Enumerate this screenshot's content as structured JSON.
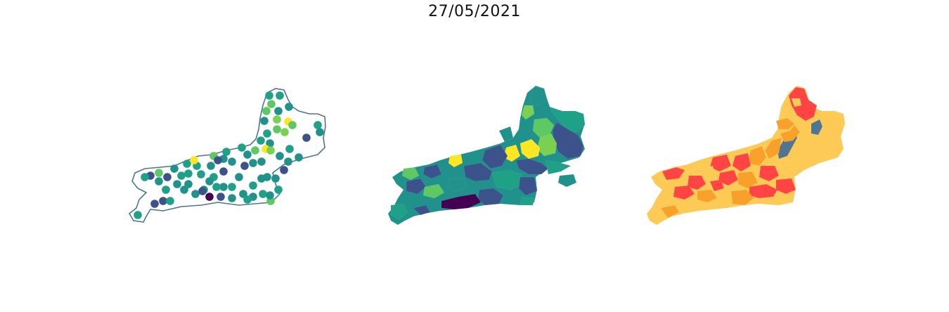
{
  "title": "27/05/2021",
  "colors": {
    "viridis": [
      "#440154",
      "#3b528b",
      "#21918c",
      "#1fa187",
      "#5ec962",
      "#7ad151",
      "#fde725"
    ],
    "risk": [
      "#ff4444",
      "#fdca55",
      "#f7a12a",
      "#4f7591"
    ],
    "outline": "#4f7591"
  },
  "maps": [
    {
      "name": "point-map",
      "type": "scatter"
    },
    {
      "name": "viridis-choropleth",
      "type": "choropleth"
    },
    {
      "name": "risk-choropleth",
      "type": "choropleth"
    }
  ]
}
